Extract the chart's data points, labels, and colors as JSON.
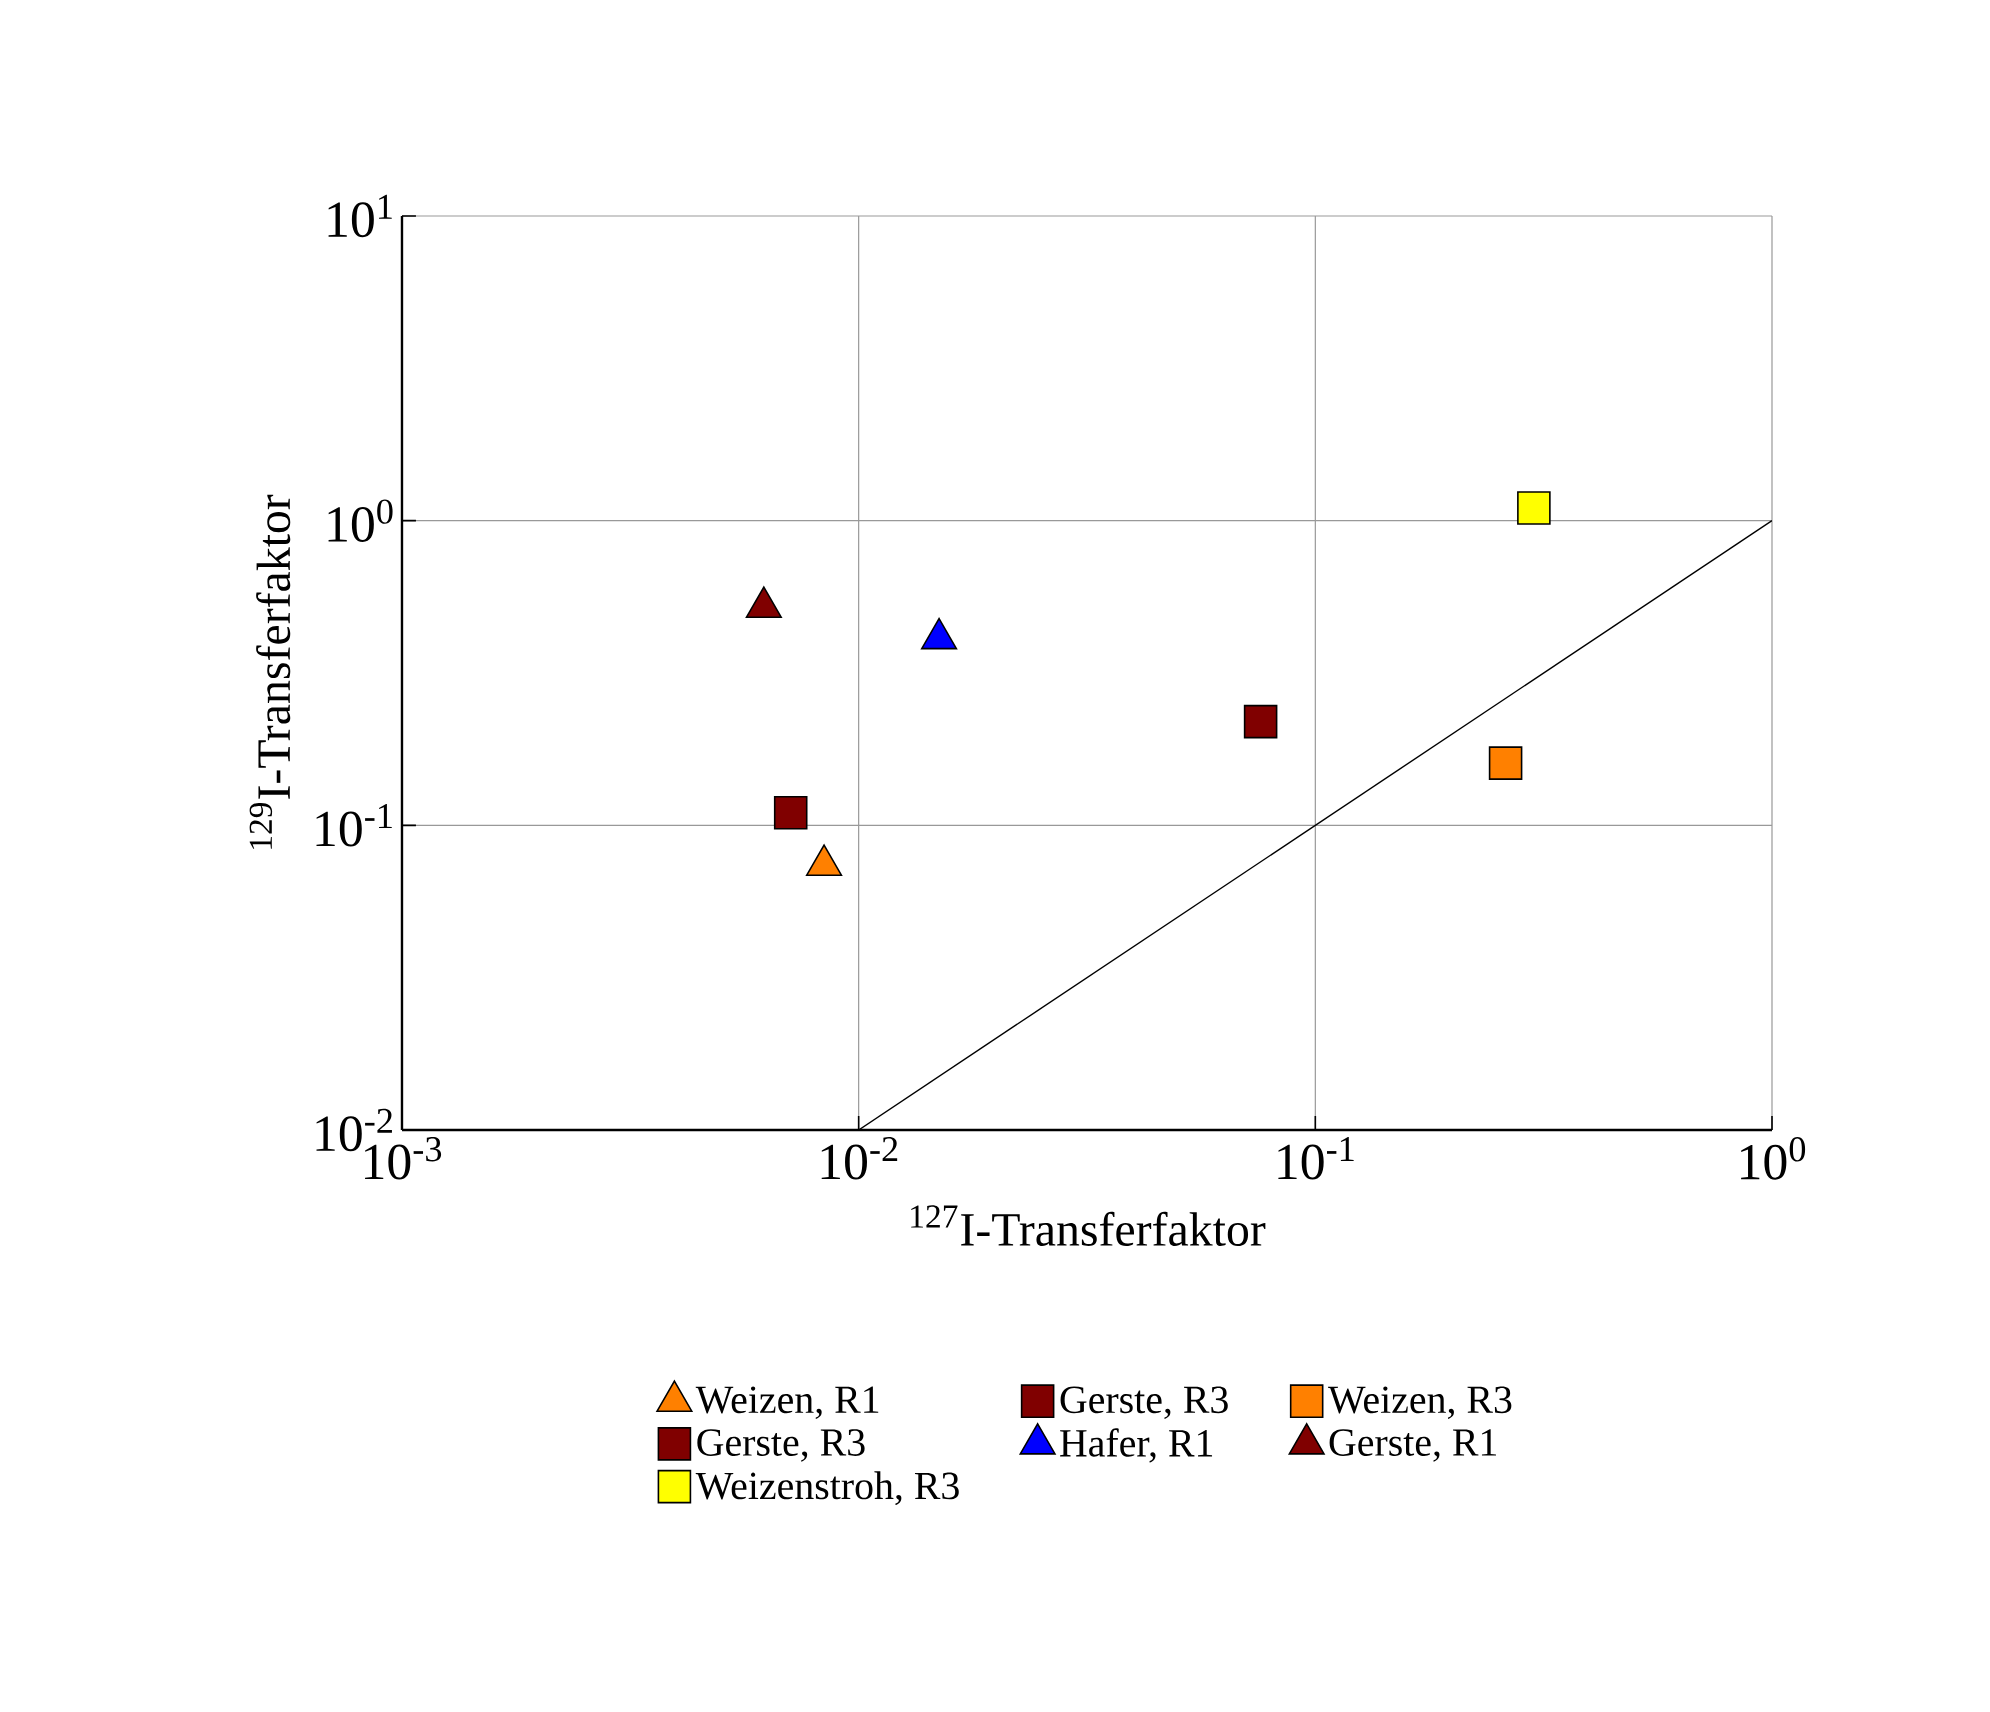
{
  "chart_data": {
    "type": "scatter",
    "xlabel": "$^{127}$I-Transferfaktor",
    "ylabel": "$^{129}$I-Transferfaktor",
    "log": "xy",
    "grid": true,
    "legend": "bottom",
    "xlim": [
      0.001,
      1
    ],
    "ylim": [
      0.01,
      10
    ],
    "xticks": [
      {
        "value": 0.001,
        "label": "10$^{-3}$"
      },
      {
        "value": 0.01,
        "label": "10$^{-2}$"
      },
      {
        "value": 0.1,
        "label": "10$^{-1}$"
      },
      {
        "value": 1,
        "label": "10$^{0}$"
      }
    ],
    "yticks": [
      {
        "value": 0.01,
        "label": "10$^{-2}$"
      },
      {
        "value": 0.1,
        "label": "10$^{-1}$"
      },
      {
        "value": 1,
        "label": "10$^{0}$"
      },
      {
        "value": 10,
        "label": "10$^{1}$"
      }
    ],
    "series": [
      {
        "name": "Weizen, R1",
        "color": "#ff8000",
        "marker": "triangle",
        "x": [
          0.0084
        ],
        "values": [
          0.074
        ]
      },
      {
        "name": "Gerste, R3",
        "color": "#800000",
        "marker": "square",
        "x": [
          0.0759
        ],
        "values": [
          0.219
        ]
      },
      {
        "name": "Weizen, R3",
        "color": "#ff8000",
        "marker": "square",
        "x": [
          0.261
        ],
        "values": [
          0.16
        ]
      },
      {
        "name": "Gerste, R3",
        "color": "#800000",
        "marker": "square",
        "x": [
          0.0071
        ],
        "values": [
          0.11
        ]
      },
      {
        "name": "Hafer, R1",
        "color": "#0000ff",
        "marker": "triangle",
        "x": [
          0.015
        ],
        "values": [
          0.41
        ]
      },
      {
        "name": "Gerste, R1",
        "color": "#800000",
        "marker": "triangle",
        "x": [
          0.0062
        ],
        "values": [
          0.52
        ]
      },
      {
        "name": "Weizenstroh, R3",
        "color": "#ffff00",
        "marker": "square",
        "x": [
          0.301
        ],
        "values": [
          1.1
        ]
      },
      {
        "type": "line",
        "color": "#000000",
        "marker": "none",
        "x": [
          0.01,
          1
        ],
        "values": [
          0.01,
          1
        ]
      }
    ]
  }
}
